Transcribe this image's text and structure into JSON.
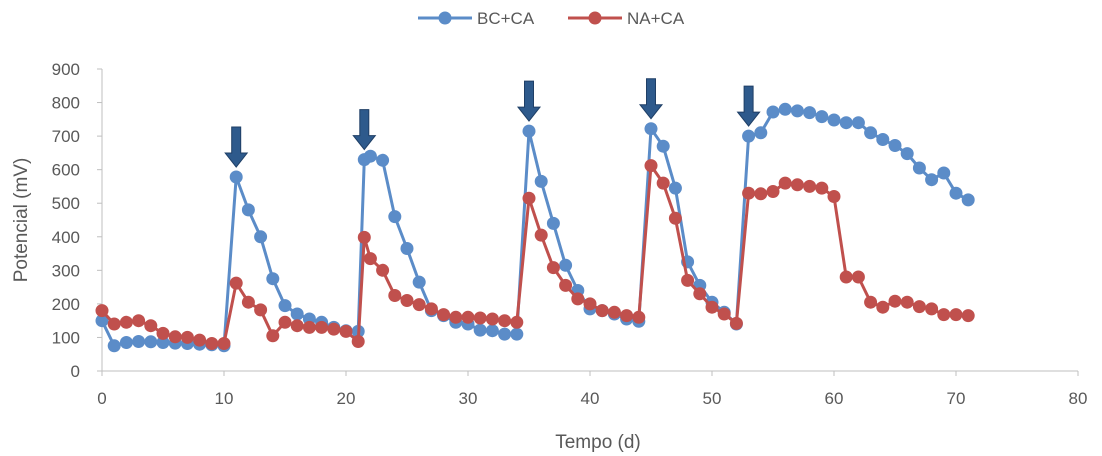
{
  "chart_data": {
    "type": "line",
    "xlabel": "Tempo (d)",
    "ylabel": "Potencial (mV)",
    "xlim": [
      0,
      80
    ],
    "ylim": [
      0,
      900
    ],
    "x_ticks": [
      "0",
      "10",
      "20",
      "30",
      "40",
      "50",
      "60",
      "70",
      "80"
    ],
    "y_ticks": [
      "0",
      "100",
      "200",
      "300",
      "400",
      "500",
      "600",
      "700",
      "800",
      "900"
    ],
    "grid": false,
    "legend_position": "top",
    "series": [
      {
        "name": "BC+CA",
        "color": "#5B8CC8",
        "points": [
          [
            0,
            150
          ],
          [
            1,
            75
          ],
          [
            2,
            85
          ],
          [
            3,
            88
          ],
          [
            4,
            87
          ],
          [
            5,
            85
          ],
          [
            6,
            83
          ],
          [
            7,
            82
          ],
          [
            8,
            80
          ],
          [
            9,
            78
          ],
          [
            10,
            75
          ],
          [
            11,
            578
          ],
          [
            12,
            480
          ],
          [
            13,
            400
          ],
          [
            14,
            275
          ],
          [
            15,
            195
          ],
          [
            16,
            170
          ],
          [
            17,
            155
          ],
          [
            18,
            145
          ],
          [
            19,
            130
          ],
          [
            20,
            120
          ],
          [
            21,
            118
          ],
          [
            21.5,
            630
          ],
          [
            22,
            640
          ],
          [
            23,
            628
          ],
          [
            24,
            460
          ],
          [
            25,
            365
          ],
          [
            26,
            265
          ],
          [
            27,
            180
          ],
          [
            28,
            165
          ],
          [
            29,
            145
          ],
          [
            30,
            140
          ],
          [
            31,
            122
          ],
          [
            32,
            120
          ],
          [
            33,
            110
          ],
          [
            34,
            110
          ],
          [
            35,
            715
          ],
          [
            36,
            565
          ],
          [
            37,
            440
          ],
          [
            38,
            315
          ],
          [
            39,
            240
          ],
          [
            40,
            185
          ],
          [
            41,
            180
          ],
          [
            42,
            170
          ],
          [
            43,
            155
          ],
          [
            44,
            148
          ],
          [
            45,
            722
          ],
          [
            46,
            670
          ],
          [
            47,
            545
          ],
          [
            48,
            325
          ],
          [
            49,
            255
          ],
          [
            50,
            205
          ],
          [
            51,
            175
          ],
          [
            52,
            140
          ],
          [
            53,
            700
          ],
          [
            54,
            710
          ],
          [
            55,
            772
          ],
          [
            56,
            780
          ],
          [
            57,
            775
          ],
          [
            58,
            770
          ],
          [
            59,
            758
          ],
          [
            60,
            748
          ],
          [
            61,
            740
          ],
          [
            62,
            740
          ],
          [
            63,
            710
          ],
          [
            64,
            690
          ],
          [
            65,
            672
          ],
          [
            66,
            648
          ],
          [
            67,
            605
          ],
          [
            68,
            570
          ],
          [
            69,
            590
          ],
          [
            70,
            530
          ],
          [
            71,
            510
          ]
        ]
      },
      {
        "name": "NA+CA",
        "color": "#C0504D",
        "points": [
          [
            0,
            180
          ],
          [
            1,
            140
          ],
          [
            2,
            145
          ],
          [
            3,
            150
          ],
          [
            4,
            135
          ],
          [
            5,
            112
          ],
          [
            6,
            102
          ],
          [
            7,
            100
          ],
          [
            8,
            92
          ],
          [
            9,
            82
          ],
          [
            10,
            82
          ],
          [
            11,
            262
          ],
          [
            12,
            205
          ],
          [
            13,
            182
          ],
          [
            14,
            105
          ],
          [
            15,
            145
          ],
          [
            16,
            135
          ],
          [
            17,
            130
          ],
          [
            18,
            130
          ],
          [
            19,
            125
          ],
          [
            20,
            118
          ],
          [
            21,
            88
          ],
          [
            21.5,
            398
          ],
          [
            22,
            335
          ],
          [
            23,
            300
          ],
          [
            24,
            225
          ],
          [
            25,
            210
          ],
          [
            26,
            198
          ],
          [
            27,
            185
          ],
          [
            28,
            168
          ],
          [
            29,
            160
          ],
          [
            30,
            160
          ],
          [
            31,
            158
          ],
          [
            32,
            155
          ],
          [
            33,
            150
          ],
          [
            34,
            145
          ],
          [
            35,
            515
          ],
          [
            36,
            405
          ],
          [
            37,
            308
          ],
          [
            38,
            255
          ],
          [
            39,
            215
          ],
          [
            40,
            200
          ],
          [
            41,
            180
          ],
          [
            42,
            175
          ],
          [
            43,
            165
          ],
          [
            44,
            160
          ],
          [
            45,
            612
          ],
          [
            46,
            560
          ],
          [
            47,
            455
          ],
          [
            48,
            270
          ],
          [
            49,
            230
          ],
          [
            50,
            190
          ],
          [
            51,
            170
          ],
          [
            52,
            142
          ],
          [
            53,
            530
          ],
          [
            54,
            528
          ],
          [
            55,
            535
          ],
          [
            56,
            560
          ],
          [
            57,
            555
          ],
          [
            58,
            550
          ],
          [
            59,
            545
          ],
          [
            60,
            520
          ],
          [
            61,
            280
          ],
          [
            62,
            280
          ],
          [
            63,
            205
          ],
          [
            64,
            190
          ],
          [
            65,
            208
          ],
          [
            66,
            205
          ],
          [
            67,
            192
          ],
          [
            68,
            185
          ],
          [
            69,
            168
          ],
          [
            70,
            168
          ],
          [
            71,
            165
          ]
        ]
      }
    ],
    "arrow_markers_x": [
      11,
      21.5,
      35,
      45,
      53
    ],
    "arrow_color": "#2E5A8C"
  }
}
